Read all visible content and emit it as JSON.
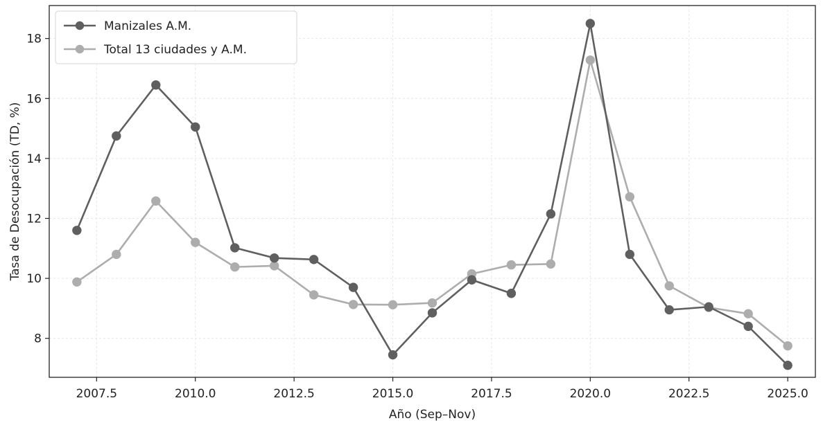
{
  "chart_data": {
    "type": "line",
    "title": "",
    "xlabel": "Año (Sep–Nov)",
    "ylabel": "Tasa de Desocupación (TD, %)",
    "xlim": [
      2006.3,
      2025.7
    ],
    "ylim": [
      6.7,
      19.1
    ],
    "x_ticks": [
      2007.5,
      2010.0,
      2012.5,
      2015.0,
      2017.5,
      2020.0,
      2022.5,
      2025.0
    ],
    "x_tick_labels": [
      "2007.5",
      "2010.0",
      "2012.5",
      "2015.0",
      "2017.5",
      "2020.0",
      "2022.5",
      "2025.0"
    ],
    "y_ticks": [
      8,
      10,
      12,
      14,
      16,
      18
    ],
    "y_tick_labels": [
      "8",
      "10",
      "12",
      "14",
      "16",
      "18"
    ],
    "grid": true,
    "legend_position": "top-left",
    "x": [
      2007,
      2008,
      2009,
      2010,
      2011,
      2012,
      2013,
      2014,
      2015,
      2016,
      2017,
      2018,
      2019,
      2020,
      2021,
      2022,
      2023,
      2024,
      2025
    ],
    "series": [
      {
        "name": "Manizales A.M.",
        "color": "#5f5f5f",
        "values": [
          11.6,
          14.75,
          16.45,
          15.05,
          11.02,
          10.68,
          10.63,
          9.7,
          7.45,
          8.85,
          9.95,
          9.5,
          12.15,
          18.5,
          10.8,
          8.95,
          9.05,
          8.4,
          7.1
        ]
      },
      {
        "name": "Total 13 ciudades y A.M.",
        "color": "#adadad",
        "values": [
          9.88,
          10.8,
          12.58,
          11.2,
          10.38,
          10.42,
          9.45,
          9.13,
          9.12,
          9.18,
          10.15,
          10.45,
          10.48,
          17.28,
          12.72,
          9.75,
          9.03,
          8.82,
          7.75
        ]
      }
    ]
  }
}
